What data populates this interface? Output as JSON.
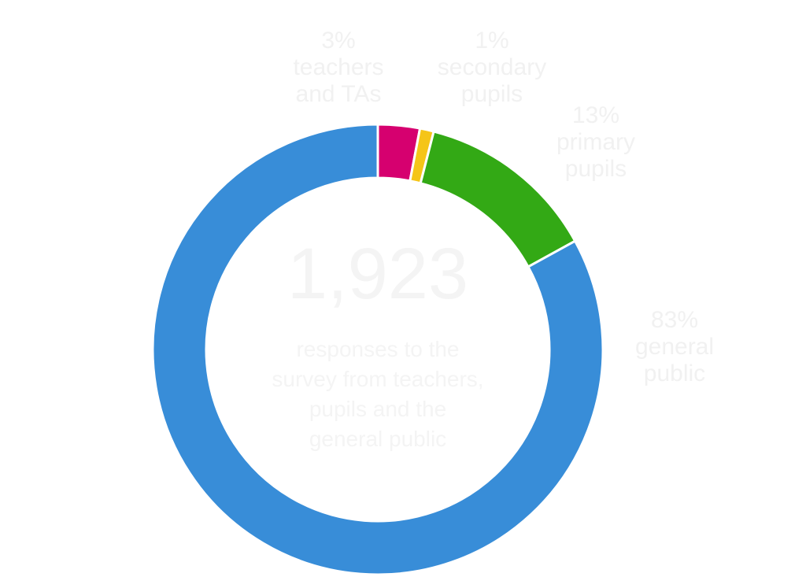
{
  "chart_data": {
    "type": "donut",
    "center_value": "1,923",
    "center_caption": "responses to the survey from teachers, pupils and the general public",
    "categories": [
      "teachers and TAs",
      "secondary pupils",
      "primary pupils",
      "general public"
    ],
    "values": [
      3,
      1,
      13,
      83
    ],
    "value_labels": [
      "3%",
      "1%",
      "13%",
      "83%"
    ],
    "colors": [
      "#d6006f",
      "#f5c518",
      "#33a915",
      "#388dd8"
    ]
  }
}
